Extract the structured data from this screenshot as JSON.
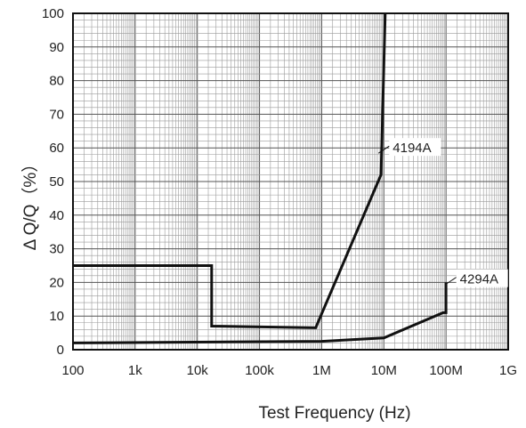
{
  "chart_data": {
    "type": "line",
    "title": "",
    "xlabel": "Test Frequency (Hz)",
    "ylabel": "Δ Q/Q（%）",
    "x_scale": "log",
    "xlim": [
      100,
      1000000000
    ],
    "ylim": [
      0,
      100
    ],
    "grid": true,
    "x_tick_values": [
      100,
      1000,
      10000,
      100000,
      1000000,
      10000000,
      100000000,
      1000000000
    ],
    "x_tick_labels": [
      "100",
      "1k",
      "10k",
      "100k",
      "1M",
      "10M",
      "100M",
      "1G"
    ],
    "y_tick_values": [
      0,
      10,
      20,
      30,
      40,
      50,
      60,
      70,
      80,
      90,
      100
    ],
    "y_tick_labels": [
      "0",
      "10",
      "20",
      "30",
      "40",
      "50",
      "60",
      "70",
      "80",
      "90",
      "100"
    ],
    "series": [
      {
        "name": "4194A",
        "points": [
          [
            100,
            25
          ],
          [
            17000,
            25
          ],
          [
            17000,
            7
          ],
          [
            800000,
            6.5
          ],
          [
            9000000,
            52
          ],
          [
            10500000,
            100
          ]
        ]
      },
      {
        "name": "4294A",
        "points": [
          [
            100,
            2
          ],
          [
            1000000,
            2.5
          ],
          [
            10000000,
            3.5
          ],
          [
            90000000,
            11
          ],
          [
            100000000,
            11
          ],
          [
            100000000,
            20
          ]
        ]
      }
    ],
    "annotations": [
      {
        "text": "4194A",
        "series": "4194A",
        "at": [
          10000000,
          60
        ]
      },
      {
        "text": "4294A",
        "series": "4294A",
        "at": [
          120000000,
          21
        ]
      }
    ]
  }
}
